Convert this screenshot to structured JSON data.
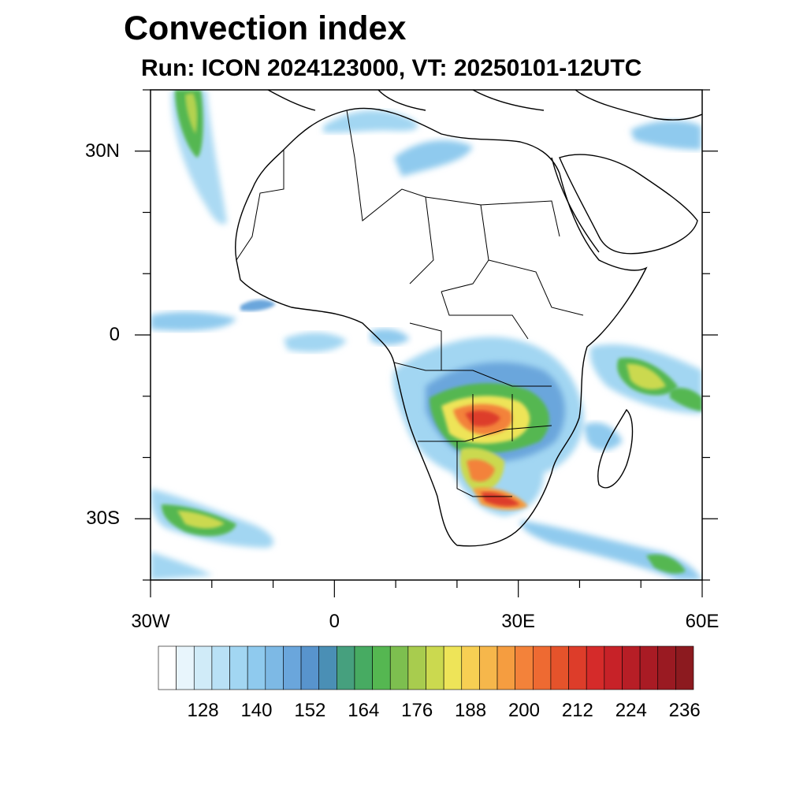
{
  "title": "Convection index",
  "subtitle": "Run: ICON 2024123000,  VT: 20250101-12UTC",
  "map": {
    "lon_range": [
      -30,
      60
    ],
    "lat_range": [
      -40,
      40
    ],
    "x_ticks": [
      {
        "lon": -30,
        "label": "30W"
      },
      {
        "lon": 0,
        "label": "0"
      },
      {
        "lon": 30,
        "label": "30E"
      },
      {
        "lon": 60,
        "label": "60E"
      }
    ],
    "y_ticks": [
      {
        "lat": 30,
        "label": "30N"
      },
      {
        "lat": 0,
        "label": "0"
      },
      {
        "lat": -30,
        "label": "30S"
      }
    ],
    "minor_lon_step": 10,
    "minor_lat_step": 10
  },
  "colorbar": {
    "levels": [
      120,
      124,
      128,
      132,
      136,
      140,
      144,
      148,
      152,
      156,
      160,
      164,
      168,
      172,
      176,
      180,
      184,
      188,
      192,
      196,
      200,
      204,
      208,
      212,
      216,
      220,
      224,
      228,
      232,
      236
    ],
    "labels": [
      "128",
      "140",
      "152",
      "164",
      "176",
      "188",
      "200",
      "212",
      "224",
      "236"
    ],
    "colors": [
      "#ffffff",
      "#e8f5fc",
      "#d0ebf8",
      "#b9e1f6",
      "#a2d6f2",
      "#8fcaee",
      "#7db9e5",
      "#6aa6dc",
      "#5894cd",
      "#4a8fb5",
      "#46a07e",
      "#47ab62",
      "#55b751",
      "#7dbf4f",
      "#a8cc4e",
      "#cbd94f",
      "#eee458",
      "#f7cf53",
      "#f6b74b",
      "#f59d40",
      "#f3823a",
      "#ee6a32",
      "#e5532b",
      "#dd3d2a",
      "#d52b2a",
      "#c72228",
      "#b71e26",
      "#a91b24",
      "#9a1a22",
      "#8c1a1f"
    ]
  },
  "convection_areas": [
    {
      "name": "southern-africa-core",
      "color": "#e5532b"
    },
    {
      "name": "madagascar-east",
      "color": "#cbd94f"
    },
    {
      "name": "south-atlantic",
      "color": "#7dbf4f"
    },
    {
      "name": "north-atlantic",
      "color": "#55b751"
    }
  ]
}
